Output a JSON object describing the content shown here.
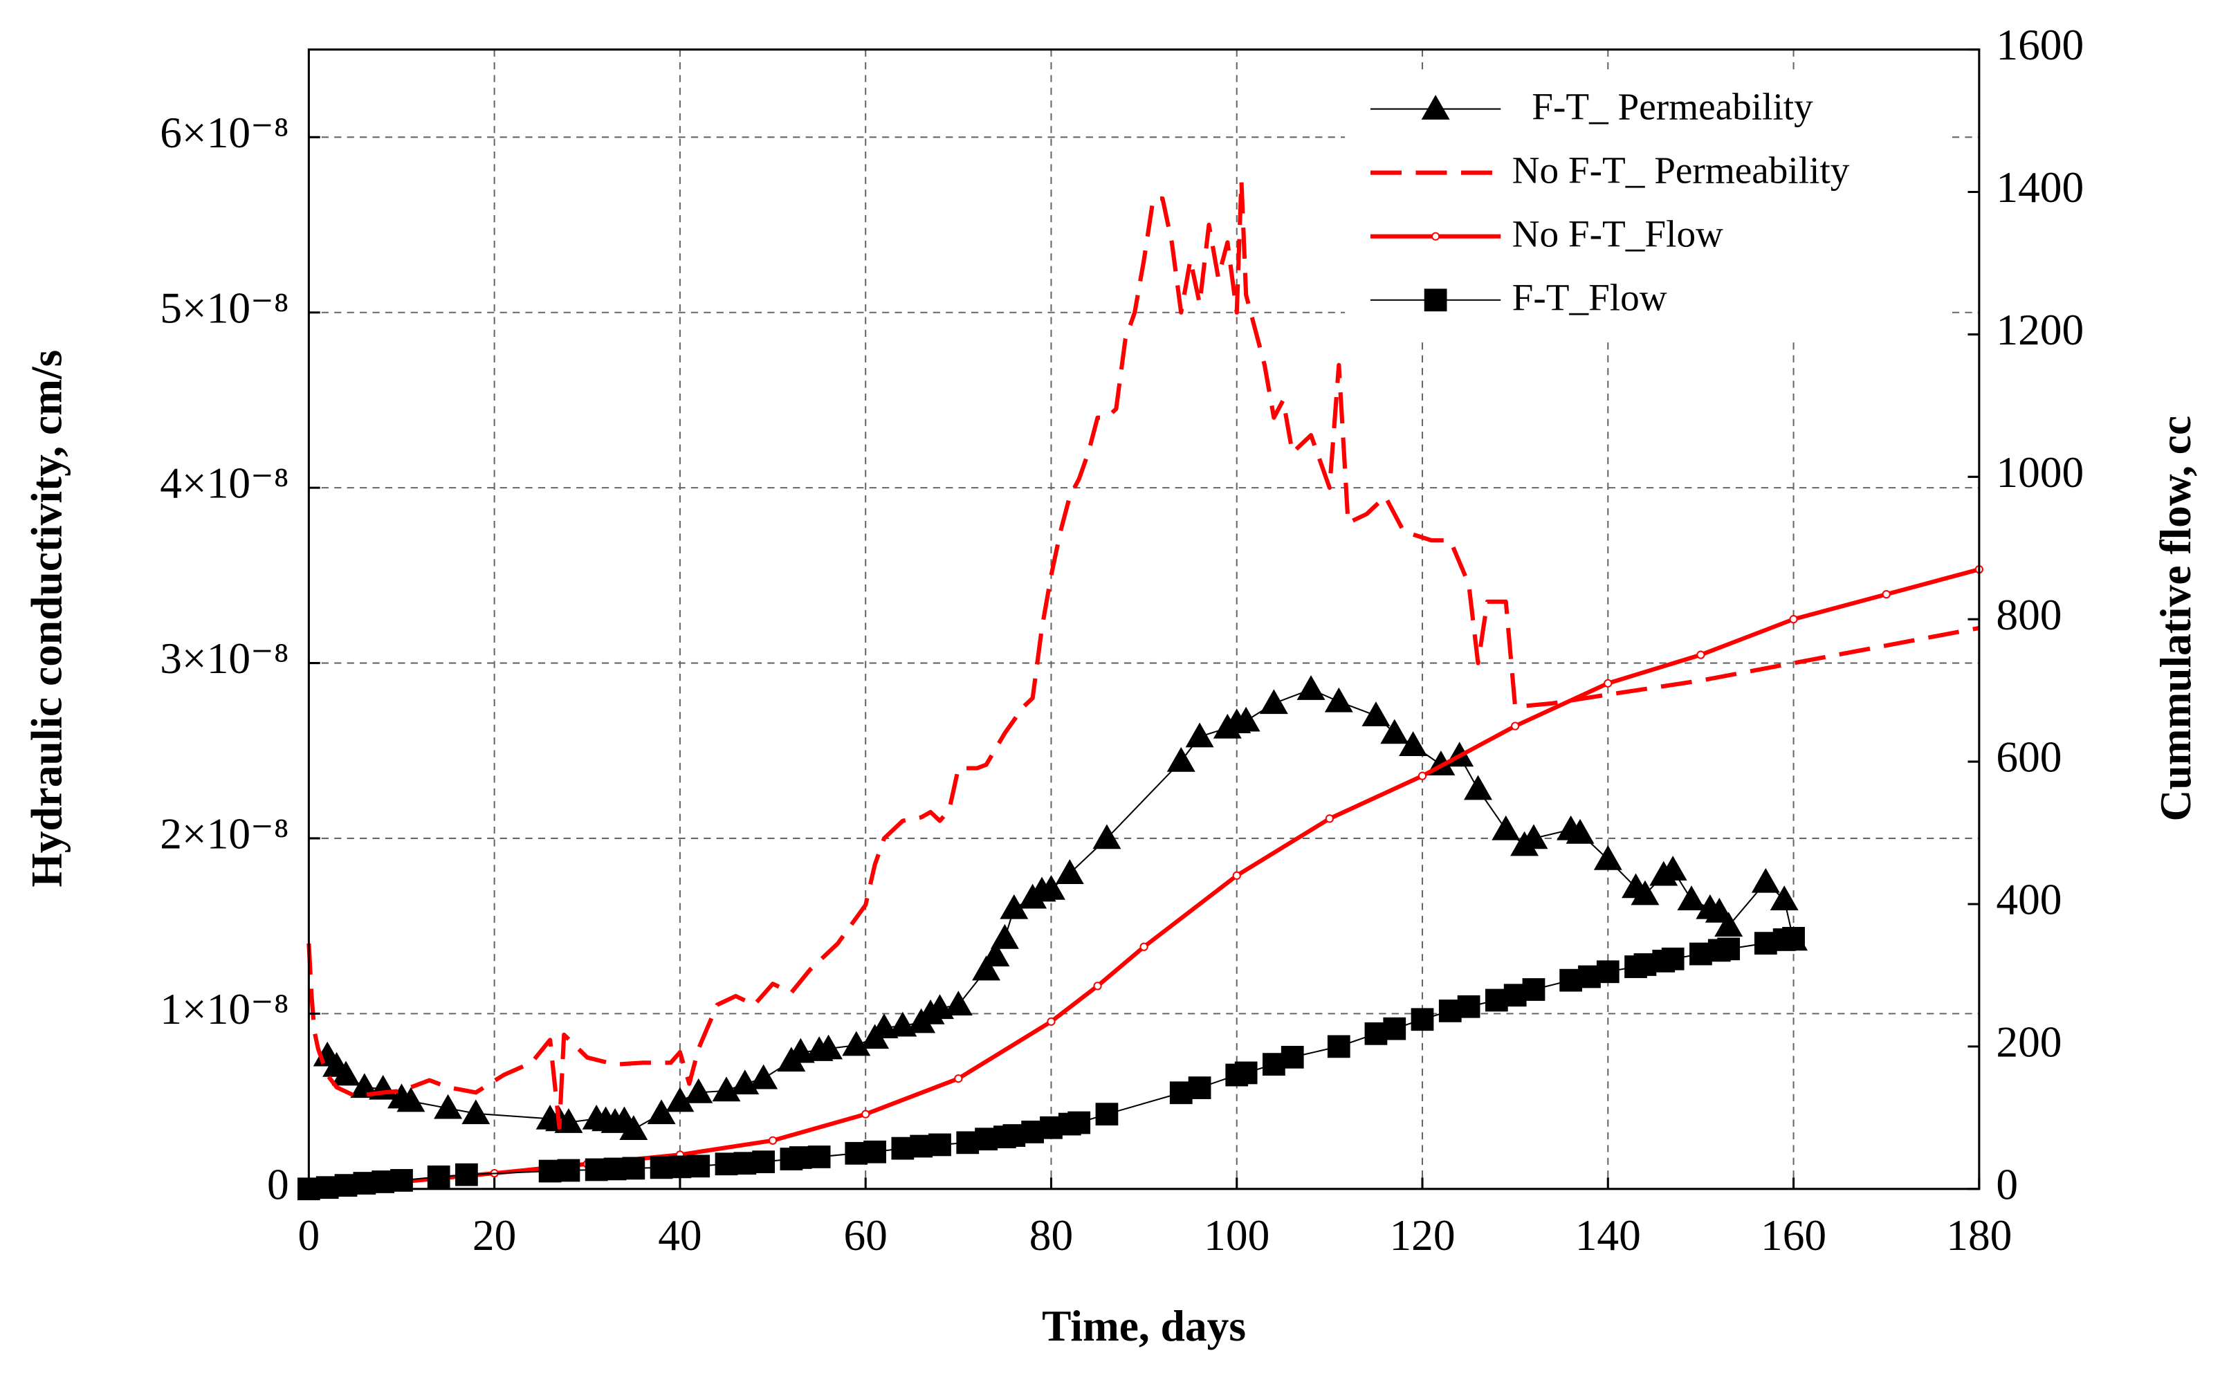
{
  "chart_data": {
    "type": "line",
    "xlabel": "Time, days",
    "ylabel": "Hydraulic conductivity, cm/s",
    "y2label": "Cummulative flow, cc",
    "xlim": [
      0,
      180
    ],
    "xticks": [
      0,
      20,
      40,
      60,
      80,
      100,
      120,
      140,
      160,
      180
    ],
    "ylim": [
      0,
      6.5e-08
    ],
    "yticks": [
      0,
      {
        "value": 1e-08,
        "label": "1×10⁻⁸"
      },
      {
        "value": 2e-08,
        "label": "2×10⁻⁸"
      },
      {
        "value": 3e-08,
        "label": "3×10⁻⁸"
      },
      {
        "value": 4e-08,
        "label": "4×10⁻⁸"
      },
      {
        "value": 5e-08,
        "label": "5×10⁻⁸"
      },
      {
        "value": 6e-08,
        "label": "6×10⁻⁸"
      }
    ],
    "y2lim": [
      0,
      1600
    ],
    "y2ticks": [
      0,
      200,
      400,
      600,
      800,
      1000,
      1200,
      1400,
      1600
    ],
    "grid": true,
    "legend": "upper right",
    "series": [
      {
        "name": "F-T_ Permeability",
        "color": "#000000",
        "marker": "triangle",
        "dash": false,
        "x": [
          2,
          3,
          4,
          6,
          8,
          10,
          11,
          15,
          18,
          26,
          27,
          28,
          31,
          32,
          33,
          34,
          35,
          38,
          40,
          42,
          45,
          47,
          49,
          52,
          53,
          55,
          56,
          59,
          61,
          62,
          64,
          66,
          67,
          68,
          70,
          73,
          74,
          75,
          76,
          78,
          79,
          80,
          82,
          86,
          94,
          96,
          99,
          100,
          101,
          104,
          108,
          111,
          115,
          117,
          119,
          122,
          124,
          126,
          129,
          131,
          132,
          136,
          137,
          140,
          143,
          144,
          146,
          147,
          149,
          151,
          152,
          153,
          157,
          159,
          160
        ],
        "values": [
          7.6e-09,
          7e-09,
          6.5e-09,
          5.8e-09,
          5.7e-09,
          5.2e-09,
          5e-09,
          4.6e-09,
          4.3e-09,
          4e-09,
          3.9e-09,
          3.8e-09,
          4e-09,
          3.9e-09,
          3.8e-09,
          3.9e-09,
          3.4e-09,
          4.3e-09,
          5e-09,
          5.5e-09,
          5.6e-09,
          6e-09,
          6.3e-09,
          7.3e-09,
          7.8e-09,
          7.9e-09,
          8e-09,
          8.2e-09,
          8.6e-09,
          9.2e-09,
          9.3e-09,
          9.5e-09,
          1e-08,
          1.03e-08,
          1.05e-08,
          1.25e-08,
          1.33e-08,
          1.43e-08,
          1.6e-08,
          1.66e-08,
          1.7e-08,
          1.71e-08,
          1.8e-08,
          2e-08,
          2.44e-08,
          2.58e-08,
          2.63e-08,
          2.66e-08,
          2.67e-08,
          2.77e-08,
          2.85e-08,
          2.78e-08,
          2.7e-08,
          2.6e-08,
          2.53e-08,
          2.42e-08,
          2.47e-08,
          2.28e-08,
          2.05e-08,
          1.96e-08,
          2e-08,
          2.05e-08,
          2.03e-08,
          1.88e-08,
          1.72e-08,
          1.68e-08,
          1.79e-08,
          1.82e-08,
          1.65e-08,
          1.6e-08,
          1.58e-08,
          1.5e-08,
          1.75e-08,
          1.65e-08,
          1.42e-08
        ]
      },
      {
        "name": "No F-T_ Permeability",
        "color": "#ff0000",
        "marker": "none",
        "dash": true,
        "x": [
          0,
          0.3,
          0.6,
          1,
          2,
          3,
          5,
          8,
          10,
          13,
          15,
          18,
          21,
          24,
          26,
          27,
          27.5,
          30,
          33,
          36,
          39,
          40,
          41,
          42,
          44,
          46,
          48,
          50,
          52,
          54,
          57,
          60,
          61,
          62,
          64,
          66,
          67,
          68,
          69,
          70,
          72,
          73,
          75,
          77,
          78,
          79,
          80,
          81,
          82,
          83,
          84,
          85,
          86,
          87,
          88,
          89,
          90,
          91,
          92,
          93,
          94,
          95,
          96,
          97,
          98,
          99,
          100,
          100.5,
          101,
          102,
          103,
          104,
          105,
          106,
          108,
          110,
          111,
          112,
          114,
          116,
          118,
          121,
          123,
          125,
          126,
          127,
          129,
          130,
          134,
          140,
          150,
          160,
          180
        ],
        "values": [
          1.4e-08,
          1.1e-08,
          9e-09,
          8e-09,
          6.5e-09,
          5.8e-09,
          5.3e-09,
          5.5e-09,
          5.6e-09,
          6.2e-09,
          5.8e-09,
          5.5e-09,
          6.5e-09,
          7.2e-09,
          8.5e-09,
          3.5e-09,
          8.8e-09,
          7.5e-09,
          7.1e-09,
          7.2e-09,
          7.2e-09,
          7.8e-09,
          6e-09,
          8e-09,
          1.05e-08,
          1.1e-08,
          1.05e-08,
          1.17e-08,
          1.12e-08,
          1.25e-08,
          1.4e-08,
          1.62e-08,
          1.85e-08,
          2e-08,
          2.1e-08,
          2.12e-08,
          2.15e-08,
          2.1e-08,
          2.16e-08,
          2.4e-08,
          2.4e-08,
          2.42e-08,
          2.6e-08,
          2.75e-08,
          2.8e-08,
          3.2e-08,
          3.5e-08,
          3.75e-08,
          3.95e-08,
          4.05e-08,
          4.2e-08,
          4.4e-08,
          4.4e-08,
          4.45e-08,
          4.85e-08,
          5e-08,
          5.3e-08,
          5.65e-08,
          5.65e-08,
          5.4e-08,
          5e-08,
          5.3e-08,
          5.05e-08,
          5.5e-08,
          5.2e-08,
          5.4e-08,
          5e-08,
          5.75e-08,
          5.1e-08,
          4.9e-08,
          4.7e-08,
          4.4e-08,
          4.5e-08,
          4.2e-08,
          4.3e-08,
          4e-08,
          4.7e-08,
          3.8e-08,
          3.85e-08,
          3.95e-08,
          3.75e-08,
          3.7e-08,
          3.7e-08,
          3.45e-08,
          3e-08,
          3.35e-08,
          3.35e-08,
          2.75e-08,
          2.77e-08,
          2.82e-08,
          2.9e-08,
          3e-08,
          3.2e-08
        ]
      },
      {
        "name": "No F-T_Flow",
        "color": "#ff0000",
        "marker": "circle",
        "dash": false,
        "axis": "y2",
        "x": [
          0,
          10,
          20,
          30,
          40,
          50,
          60,
          70,
          80,
          85,
          90,
          100,
          110,
          120,
          130,
          140,
          150,
          160,
          170,
          180
        ],
        "values": [
          0,
          10,
          22,
          35,
          48,
          68,
          105,
          155,
          235,
          285,
          340,
          440,
          520,
          580,
          650,
          710,
          750,
          800,
          835,
          870
        ]
      },
      {
        "name": "F-T_Flow",
        "color": "#000000",
        "marker": "square",
        "dash": false,
        "axis": "y2",
        "x": [
          0,
          2,
          4,
          6,
          8,
          10,
          14,
          17,
          26,
          28,
          31,
          33,
          35,
          38,
          40,
          42,
          45,
          47,
          49,
          52,
          53,
          55,
          59,
          61,
          64,
          66,
          68,
          71,
          73,
          75,
          76,
          78,
          80,
          82,
          83,
          86,
          94,
          96,
          100,
          101,
          104,
          106,
          111,
          115,
          117,
          120,
          123,
          125,
          128,
          130,
          132,
          136,
          138,
          140,
          143,
          144,
          146,
          147,
          150,
          152,
          153,
          157,
          159,
          160
        ],
        "values": [
          0,
          2,
          5,
          8,
          10,
          12,
          17,
          20,
          25,
          26,
          27,
          28,
          29,
          30,
          31,
          32,
          35,
          36,
          38,
          42,
          44,
          45,
          50,
          52,
          57,
          60,
          62,
          65,
          70,
          73,
          75,
          80,
          86,
          91,
          93,
          105,
          135,
          142,
          160,
          163,
          175,
          185,
          200,
          218,
          225,
          238,
          250,
          256,
          265,
          272,
          280,
          293,
          298,
          305,
          312,
          315,
          320,
          323,
          330,
          335,
          337,
          345,
          350,
          352
        ]
      }
    ]
  }
}
